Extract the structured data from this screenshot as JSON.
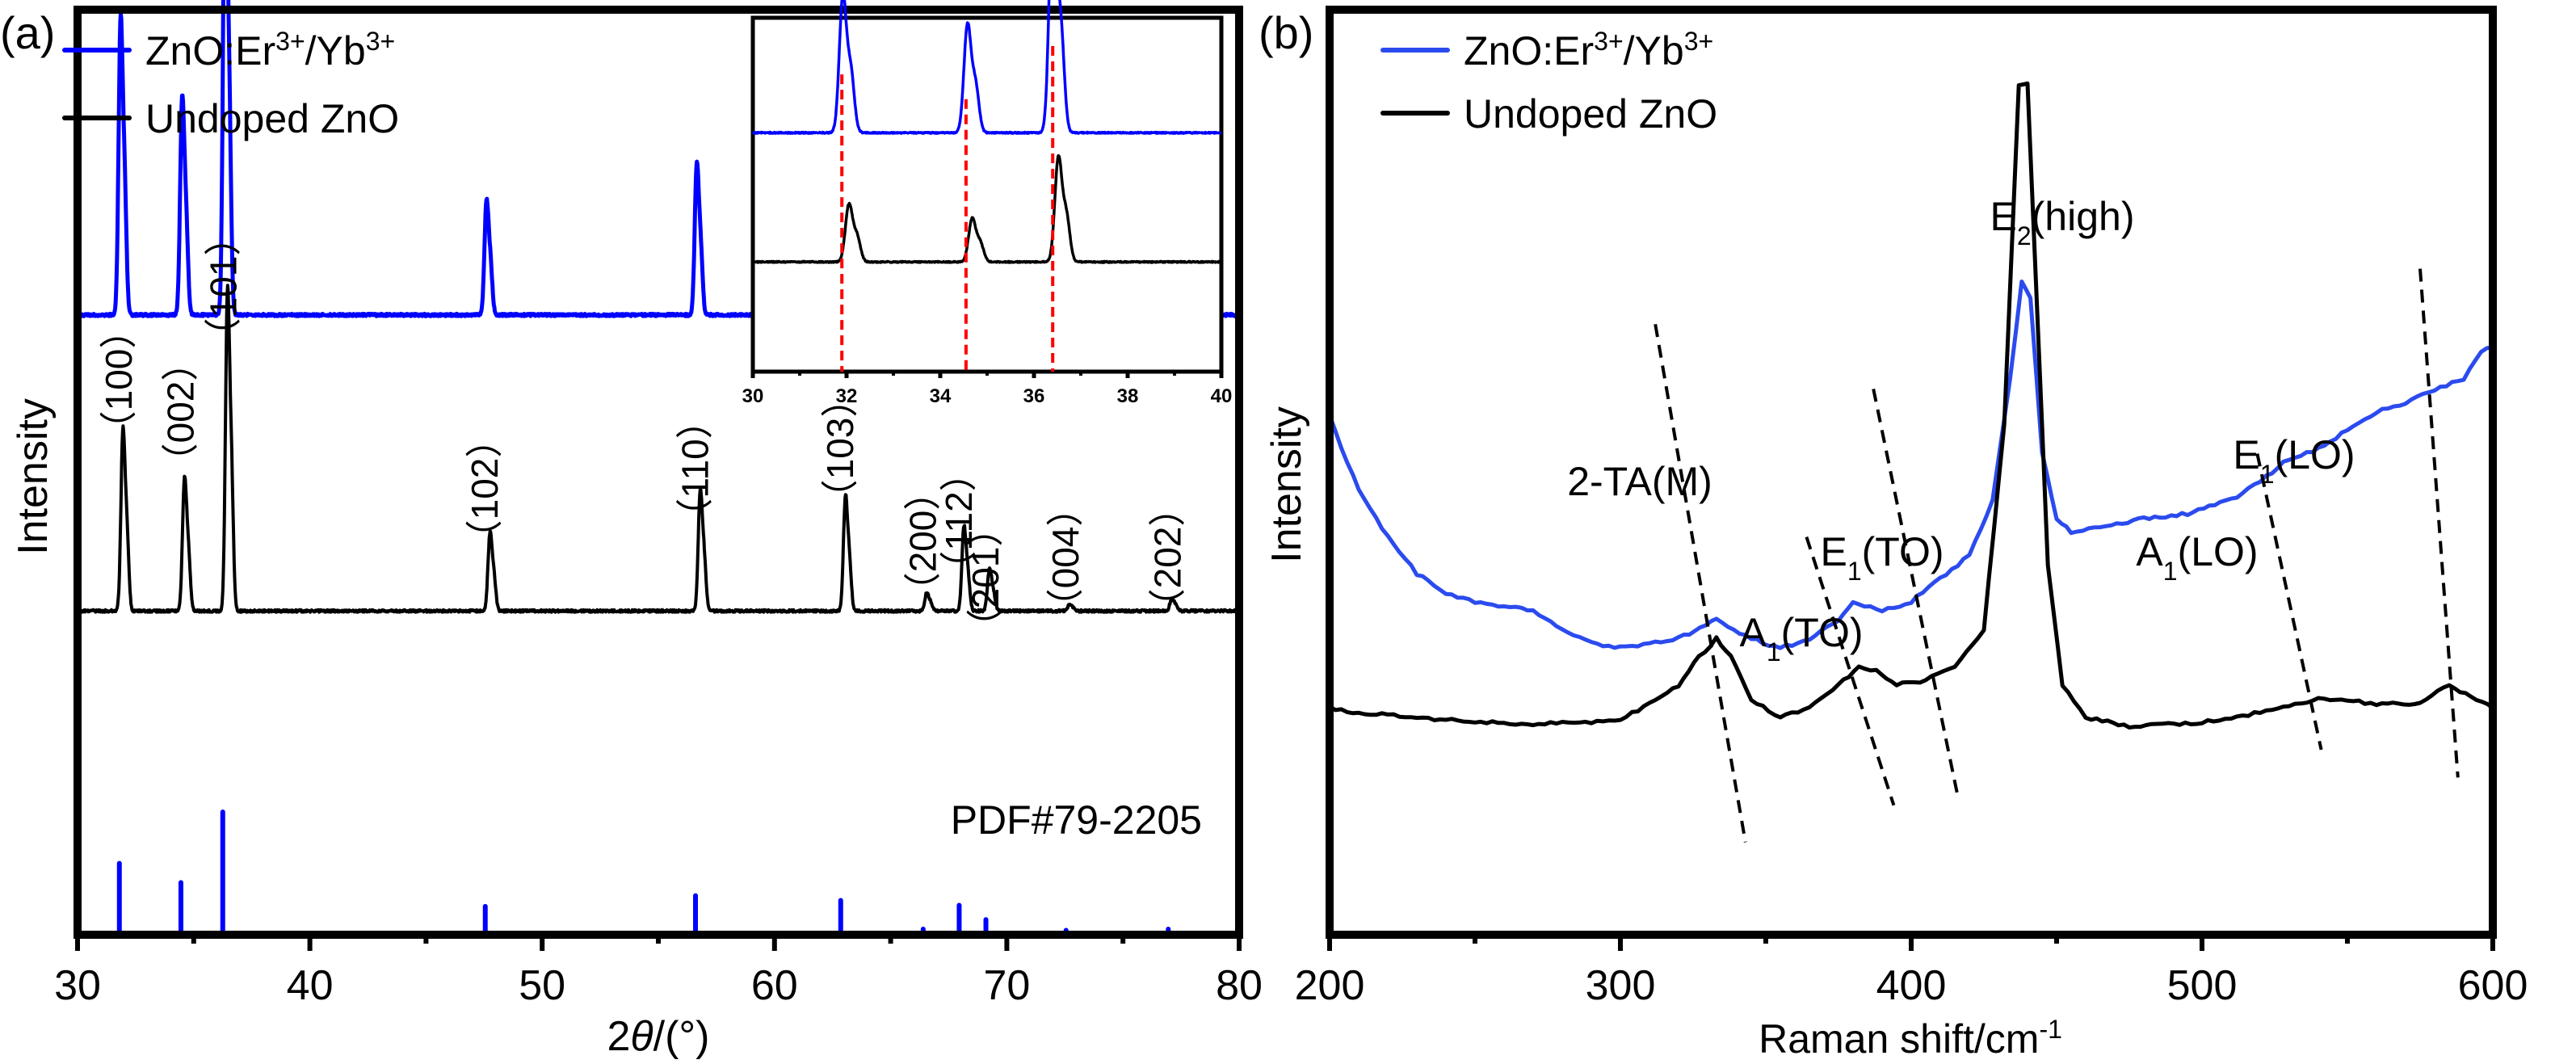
{
  "chart_data": [
    {
      "panel_label": "(a)",
      "type": "line",
      "title": "",
      "xlabel": "2θ/(°)",
      "xlabel_parts": {
        "prefix": "2",
        "italic": "θ",
        "suffix": "/(°)"
      },
      "ylabel": "Intensity",
      "xlim": [
        30,
        80
      ],
      "x_ticks": [
        30,
        40,
        50,
        60,
        70,
        80
      ],
      "x_minor_ticks": [
        35,
        45,
        55,
        65,
        75
      ],
      "y_ticks": [],
      "grid": false,
      "legend": {
        "placement": "top-left",
        "entries": [
          {
            "name": "ZnO:Er3+/Yb3+",
            "parts": [
              [
                "ZnO:Er",
                ""
              ],
              [
                "3+",
                "sup"
              ],
              [
                "/Yb",
                ""
              ],
              [
                "3+",
                "sup"
              ]
            ],
            "color": "#0000ff"
          },
          {
            "name": "Undoped ZnO",
            "parts": [
              [
                "Undoped ZnO",
                ""
              ]
            ],
            "color": "#000000"
          }
        ]
      },
      "series": [
        {
          "name": "ZnO:Er3+/Yb3+",
          "color": "#0000ff",
          "baseline_offset": 0.67,
          "peaks": [
            {
              "x": 31.85,
              "h": 0.49
            },
            {
              "x": 34.5,
              "h": 0.36
            },
            {
              "x": 36.35,
              "h": 0.82
            },
            {
              "x": 47.6,
              "h": 0.19
            },
            {
              "x": 56.65,
              "h": 0.25
            },
            {
              "x": 62.9,
              "h": 0.23
            },
            {
              "x": 66.45,
              "h": 0.04
            },
            {
              "x": 68.0,
              "h": 0.16
            },
            {
              "x": 69.15,
              "h": 0.1
            },
            {
              "x": 72.6,
              "h": 0.015
            },
            {
              "x": 77.0,
              "h": 0.03
            }
          ]
        },
        {
          "name": "Undoped ZnO",
          "color": "#000000",
          "baseline_offset": 0.35,
          "peaks": [
            {
              "x": 31.95,
              "h": 0.3
            },
            {
              "x": 34.6,
              "h": 0.22
            },
            {
              "x": 36.45,
              "h": 0.53
            },
            {
              "x": 47.75,
              "h": 0.13
            },
            {
              "x": 56.8,
              "h": 0.2
            },
            {
              "x": 63.05,
              "h": 0.19
            },
            {
              "x": 66.55,
              "h": 0.03
            },
            {
              "x": 68.15,
              "h": 0.14
            },
            {
              "x": 69.25,
              "h": 0.07
            },
            {
              "x": 72.7,
              "h": 0.01
            },
            {
              "x": 77.1,
              "h": 0.02
            }
          ]
        }
      ],
      "reference": {
        "label": "PDF#79-2205",
        "color": "#0000ff",
        "sticks": [
          {
            "x": 31.8,
            "h": 0.57
          },
          {
            "x": 34.45,
            "h": 0.41
          },
          {
            "x": 36.25,
            "h": 1.0
          },
          {
            "x": 47.55,
            "h": 0.21
          },
          {
            "x": 56.6,
            "h": 0.3
          },
          {
            "x": 62.85,
            "h": 0.26
          },
          {
            "x": 66.4,
            "h": 0.02
          },
          {
            "x": 67.95,
            "h": 0.22
          },
          {
            "x": 69.1,
            "h": 0.1
          },
          {
            "x": 72.55,
            "h": 0.01
          },
          {
            "x": 76.95,
            "h": 0.02
          }
        ]
      },
      "annotations": [
        {
          "text": "（100）",
          "x": 31.85
        },
        {
          "text": "（002）",
          "x": 34.5
        },
        {
          "text": "（101）",
          "x": 36.35
        },
        {
          "text": "（102）",
          "x": 47.6
        },
        {
          "text": "（110）",
          "x": 56.65
        },
        {
          "text": "（103）",
          "x": 62.9
        },
        {
          "text": "（200）",
          "x": 66.45
        },
        {
          "text": "（112）",
          "x": 68.0
        },
        {
          "text": "（201）",
          "x": 69.15
        },
        {
          "text": "（004）",
          "x": 72.6
        },
        {
          "text": "（202）",
          "x": 77.0
        }
      ],
      "inset": {
        "type": "line",
        "placement": "top-right",
        "xlim": [
          30,
          40
        ],
        "x_ticks": [
          30,
          32,
          34,
          36,
          38,
          40
        ],
        "x_minor_ticks": [
          31,
          33,
          35,
          37,
          39
        ],
        "reference_lines": {
          "color": "#ff0000",
          "style": "dashed",
          "x": [
            31.9,
            34.55,
            36.4
          ]
        },
        "series": [
          {
            "name": "ZnO:Er3+/Yb3+",
            "color": "#0000ff",
            "peaks": [
              {
                "x": 31.92,
                "h": 0.38
              },
              {
                "x": 34.58,
                "h": 0.3
              },
              {
                "x": 36.4,
                "h": 0.66
              }
            ]
          },
          {
            "name": "Undoped ZnO",
            "color": "#000000",
            "peaks": [
              {
                "x": 32.05,
                "h": 0.16
              },
              {
                "x": 34.68,
                "h": 0.12
              },
              {
                "x": 36.52,
                "h": 0.29
              }
            ]
          }
        ]
      }
    },
    {
      "panel_label": "(b)",
      "type": "line",
      "title": "",
      "xlabel": "Raman shift/cm-1",
      "xlabel_parts": {
        "main": "Raman shift/cm",
        "sup": "-1"
      },
      "ylabel": "Intensity",
      "xlim": [
        200,
        600
      ],
      "x_ticks": [
        200,
        300,
        400,
        500,
        600
      ],
      "x_minor_ticks": [
        250,
        350,
        450,
        550
      ],
      "y_ticks": [],
      "grid": false,
      "legend": {
        "placement": "top-left",
        "entries": [
          {
            "name": "ZnO:Er3+/Yb3+",
            "parts": [
              [
                "ZnO:Er",
                ""
              ],
              [
                "3+",
                "sup"
              ],
              [
                "/Yb",
                ""
              ],
              [
                "3+",
                "sup"
              ]
            ],
            "color": "#2b4bee"
          },
          {
            "name": "Undoped ZnO",
            "parts": [
              [
                "Undoped ZnO",
                ""
              ]
            ],
            "color": "#000000"
          }
        ]
      },
      "series": [
        {
          "name": "ZnO:Er3+/Yb3+",
          "color": "#2b4bee",
          "points": [
            [
              200,
              0.56
            ],
            [
              210,
              0.48
            ],
            [
              220,
              0.43
            ],
            [
              230,
              0.39
            ],
            [
              240,
              0.37
            ],
            [
              250,
              0.36
            ],
            [
              260,
              0.355
            ],
            [
              270,
              0.35
            ],
            [
              280,
              0.33
            ],
            [
              290,
              0.315
            ],
            [
              300,
              0.31
            ],
            [
              310,
              0.315
            ],
            [
              320,
              0.32
            ],
            [
              333,
              0.34
            ],
            [
              345,
              0.32
            ],
            [
              355,
              0.31
            ],
            [
              365,
              0.32
            ],
            [
              375,
              0.34
            ],
            [
              380,
              0.36
            ],
            [
              390,
              0.35
            ],
            [
              400,
              0.36
            ],
            [
              410,
              0.385
            ],
            [
              420,
              0.41
            ],
            [
              428,
              0.47
            ],
            [
              434,
              0.6
            ],
            [
              438,
              0.705
            ],
            [
              441,
              0.69
            ],
            [
              445,
              0.52
            ],
            [
              450,
              0.45
            ],
            [
              455,
              0.435
            ],
            [
              465,
              0.44
            ],
            [
              480,
              0.45
            ],
            [
              495,
              0.455
            ],
            [
              510,
              0.47
            ],
            [
              520,
              0.49
            ],
            [
              530,
              0.515
            ],
            [
              540,
              0.525
            ],
            [
              550,
              0.545
            ],
            [
              560,
              0.565
            ],
            [
              570,
              0.575
            ],
            [
              580,
              0.59
            ],
            [
              590,
              0.6
            ],
            [
              596,
              0.63
            ],
            [
              600,
              0.635
            ]
          ]
        },
        {
          "name": "Undoped ZnO",
          "color": "#000000",
          "points": [
            [
              200,
              0.245
            ],
            [
              210,
              0.24
            ],
            [
              230,
              0.235
            ],
            [
              250,
              0.23
            ],
            [
              270,
              0.228
            ],
            [
              290,
              0.23
            ],
            [
              300,
              0.232
            ],
            [
              310,
              0.25
            ],
            [
              320,
              0.27
            ],
            [
              327,
              0.3
            ],
            [
              333,
              0.32
            ],
            [
              338,
              0.3
            ],
            [
              345,
              0.255
            ],
            [
              355,
              0.235
            ],
            [
              365,
              0.245
            ],
            [
              375,
              0.27
            ],
            [
              382,
              0.29
            ],
            [
              388,
              0.285
            ],
            [
              395,
              0.27
            ],
            [
              405,
              0.275
            ],
            [
              415,
              0.29
            ],
            [
              425,
              0.33
            ],
            [
              432,
              0.55
            ],
            [
              437,
              0.92
            ],
            [
              440,
              0.92
            ],
            [
              443,
              0.7
            ],
            [
              447,
              0.4
            ],
            [
              452,
              0.27
            ],
            [
              460,
              0.235
            ],
            [
              475,
              0.225
            ],
            [
              500,
              0.23
            ],
            [
              520,
              0.24
            ],
            [
              540,
              0.255
            ],
            [
              560,
              0.25
            ],
            [
              575,
              0.25
            ],
            [
              585,
              0.27
            ],
            [
              600,
              0.245
            ]
          ]
        }
      ],
      "annotations": [
        {
          "text": "E2(high)",
          "main": "E",
          "sub": "2",
          "tail": "(high)",
          "peak_x": 438
        },
        {
          "text": "2-TA(M)",
          "main": "2-TA(M)",
          "sub": "",
          "tail": "",
          "line_from": [
            312,
            0.66
          ],
          "line_to": [
            343,
            0.1
          ]
        },
        {
          "text": "A1(TO)",
          "main": "A",
          "sub": "1",
          "tail": "(TO)",
          "line_from": [
            364,
            0.43
          ],
          "line_to": [
            394,
            0.14
          ]
        },
        {
          "text": "E1(TO)",
          "main": "E",
          "sub": "1",
          "tail": "(TO)",
          "line_from": [
            387,
            0.59
          ],
          "line_to": [
            416,
            0.15
          ]
        },
        {
          "text": "A1(LO)",
          "main": "A",
          "sub": "1",
          "tail": "(LO)",
          "line_from": [
            519,
            0.52
          ],
          "line_to": [
            541,
            0.2
          ]
        },
        {
          "text": "E1(LO)",
          "main": "E",
          "sub": "1",
          "tail": "(LO)",
          "line_from": [
            575,
            0.72
          ],
          "line_to": [
            588,
            0.17
          ]
        }
      ]
    }
  ]
}
